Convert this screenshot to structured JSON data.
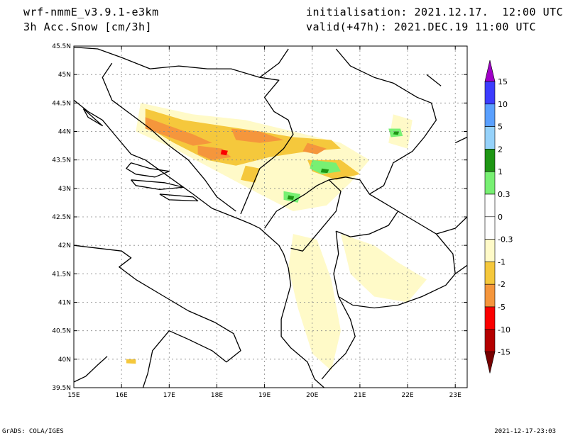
{
  "header": {
    "model": "wrf-nmmE_v3.9.1-e3km",
    "field": "3h Acc.Snow [cm/3h]",
    "init": "initialisation: 2021.12.17.  12:00 UTC",
    "valid": "valid(+47h): 2021.DEC.19 11:00 UTC"
  },
  "footer": {
    "software": "GrADS: COLA/IGES",
    "timestamp": "2021-12-17-23:03"
  },
  "axes": {
    "lon_min": 15,
    "lon_max": 23.25,
    "lat_min": 39.5,
    "lat_max": 45.5,
    "x_ticks": [
      {
        "v": 15,
        "label": "15E"
      },
      {
        "v": 16,
        "label": "16E"
      },
      {
        "v": 17,
        "label": "17E"
      },
      {
        "v": 18,
        "label": "18E"
      },
      {
        "v": 19,
        "label": "19E"
      },
      {
        "v": 20,
        "label": "20E"
      },
      {
        "v": 21,
        "label": "21E"
      },
      {
        "v": 22,
        "label": "22E"
      },
      {
        "v": 23,
        "label": "23E"
      }
    ],
    "y_ticks": [
      {
        "v": 39.5,
        "label": "39.5N"
      },
      {
        "v": 40,
        "label": "40N"
      },
      {
        "v": 40.5,
        "label": "40.5N"
      },
      {
        "v": 41,
        "label": "41N"
      },
      {
        "v": 41.5,
        "label": "41.5N"
      },
      {
        "v": 42,
        "label": "42N"
      },
      {
        "v": 42.5,
        "label": "42.5N"
      },
      {
        "v": 43,
        "label": "43N"
      },
      {
        "v": 43.5,
        "label": "43.5N"
      },
      {
        "v": 44,
        "label": "44N"
      },
      {
        "v": 44.5,
        "label": "44.5N"
      },
      {
        "v": 45,
        "label": "45N"
      },
      {
        "v": 45.5,
        "label": "45.5N"
      }
    ]
  },
  "colorbar": {
    "bins": [
      {
        "color": "#a000c8"
      },
      {
        "color": "#3c3cff"
      },
      {
        "color": "#5aa0ff"
      },
      {
        "color": "#96d2fa"
      },
      {
        "color": "#1e9614"
      },
      {
        "color": "#78f073"
      },
      {
        "color": "#ffffff"
      },
      {
        "color": "#ffffff"
      },
      {
        "color": "#fffac8"
      },
      {
        "color": "#f5c83c"
      },
      {
        "color": "#f5963c"
      },
      {
        "color": "#fa0000"
      },
      {
        "color": "#b40000"
      },
      {
        "color": "#780000"
      }
    ],
    "labels": [
      "15",
      "10",
      "5",
      "2",
      "1",
      "0.3",
      "0",
      "-0.3",
      "-1",
      "-2",
      "-5",
      "-10",
      "-15"
    ]
  },
  "snow_areas": [
    {
      "color": "#fffac8",
      "pts": [
        [
          16.4,
          44.5
        ],
        [
          17.5,
          44.3
        ],
        [
          18.6,
          44.2
        ],
        [
          19.6,
          44.0
        ],
        [
          20.6,
          43.8
        ],
        [
          21.2,
          43.5
        ],
        [
          20.8,
          43.1
        ],
        [
          20.3,
          42.7
        ],
        [
          19.6,
          42.6
        ],
        [
          18.9,
          42.9
        ],
        [
          18.0,
          43.3
        ],
        [
          17.1,
          43.7
        ],
        [
          16.3,
          44.0
        ]
      ]
    },
    {
      "color": "#fffac8",
      "pts": [
        [
          19.6,
          42.2
        ],
        [
          20.1,
          42.1
        ],
        [
          20.4,
          41.4
        ],
        [
          20.6,
          40.5
        ],
        [
          20.4,
          39.8
        ],
        [
          20.0,
          40.1
        ],
        [
          19.7,
          40.9
        ],
        [
          19.5,
          41.6
        ]
      ]
    },
    {
      "color": "#fffac8",
      "pts": [
        [
          20.6,
          42.2
        ],
        [
          21.3,
          42.0
        ],
        [
          21.8,
          41.7
        ],
        [
          22.4,
          41.4
        ],
        [
          22.0,
          41.0
        ],
        [
          21.3,
          41.1
        ],
        [
          20.8,
          41.5
        ]
      ]
    },
    {
      "color": "#fffac8",
      "pts": [
        [
          21.7,
          44.3
        ],
        [
          22.1,
          44.2
        ],
        [
          22.0,
          43.7
        ],
        [
          21.6,
          43.8
        ]
      ]
    },
    {
      "color": "#f5c83c",
      "pts": [
        [
          16.5,
          44.4
        ],
        [
          17.3,
          44.2
        ],
        [
          18.1,
          44.1
        ],
        [
          18.9,
          44.0
        ],
        [
          19.6,
          43.9
        ],
        [
          20.4,
          43.85
        ],
        [
          20.6,
          43.7
        ],
        [
          19.9,
          43.65
        ],
        [
          19.1,
          43.55
        ],
        [
          18.4,
          43.4
        ],
        [
          17.8,
          43.5
        ],
        [
          17.1,
          43.8
        ],
        [
          16.5,
          44.1
        ]
      ]
    },
    {
      "color": "#f5c83c",
      "pts": [
        [
          19.9,
          43.5
        ],
        [
          20.6,
          43.5
        ],
        [
          21.0,
          43.25
        ],
        [
          20.5,
          43.15
        ],
        [
          20.0,
          43.3
        ]
      ]
    },
    {
      "color": "#f5c83c",
      "pts": [
        [
          18.6,
          43.4
        ],
        [
          18.9,
          43.35
        ],
        [
          18.8,
          43.1
        ],
        [
          18.5,
          43.15
        ]
      ]
    },
    {
      "color": "#f5c83c",
      "pts": [
        [
          16.1,
          40.0
        ],
        [
          16.3,
          40.0
        ],
        [
          16.3,
          39.92
        ],
        [
          16.1,
          39.93
        ]
      ]
    },
    {
      "color": "#f5963c",
      "pts": [
        [
          16.5,
          44.25
        ],
        [
          17.0,
          44.1
        ],
        [
          17.5,
          43.95
        ],
        [
          17.9,
          43.8
        ],
        [
          17.5,
          43.75
        ],
        [
          17.0,
          43.9
        ],
        [
          16.5,
          44.05
        ]
      ]
    },
    {
      "color": "#f5963c",
      "pts": [
        [
          18.3,
          44.05
        ],
        [
          18.9,
          44.0
        ],
        [
          19.4,
          43.85
        ],
        [
          18.9,
          43.8
        ],
        [
          18.4,
          43.85
        ]
      ]
    },
    {
      "color": "#f5963c",
      "pts": [
        [
          17.6,
          43.75
        ],
        [
          18.1,
          43.7
        ],
        [
          18.3,
          43.55
        ],
        [
          17.9,
          43.5
        ],
        [
          17.6,
          43.6
        ]
      ]
    },
    {
      "color": "#f5963c",
      "pts": [
        [
          19.9,
          43.8
        ],
        [
          20.3,
          43.7
        ],
        [
          20.1,
          43.6
        ],
        [
          19.8,
          43.65
        ]
      ]
    },
    {
      "color": "#fa0000",
      "pts": [
        [
          18.1,
          43.68
        ],
        [
          18.23,
          43.66
        ],
        [
          18.2,
          43.58
        ],
        [
          18.08,
          43.6
        ]
      ]
    },
    {
      "color": "#78f073",
      "pts": [
        [
          20.0,
          43.5
        ],
        [
          20.5,
          43.45
        ],
        [
          20.6,
          43.3
        ],
        [
          20.2,
          43.25
        ],
        [
          19.95,
          43.35
        ]
      ]
    },
    {
      "color": "#78f073",
      "pts": [
        [
          19.4,
          42.95
        ],
        [
          19.75,
          42.9
        ],
        [
          19.7,
          42.75
        ],
        [
          19.4,
          42.8
        ]
      ]
    },
    {
      "color": "#78f073",
      "pts": [
        [
          21.6,
          44.05
        ],
        [
          21.85,
          44.05
        ],
        [
          21.9,
          43.92
        ],
        [
          21.65,
          43.9
        ]
      ]
    },
    {
      "color": "#1e9614",
      "pts": [
        [
          20.2,
          43.35
        ],
        [
          20.35,
          43.33
        ],
        [
          20.32,
          43.27
        ],
        [
          20.18,
          43.28
        ]
      ]
    },
    {
      "color": "#1e9614",
      "pts": [
        [
          19.5,
          42.88
        ],
        [
          19.62,
          42.86
        ],
        [
          19.6,
          42.8
        ],
        [
          19.48,
          42.81
        ]
      ]
    },
    {
      "color": "#1e9614",
      "pts": [
        [
          21.72,
          44.0
        ],
        [
          21.82,
          44.0
        ],
        [
          21.8,
          43.94
        ],
        [
          21.7,
          43.95
        ]
      ]
    }
  ],
  "coast_lines": [
    [
      [
        15.0,
        44.55
      ],
      [
        15.3,
        44.35
      ],
      [
        15.6,
        44.2
      ],
      [
        15.9,
        43.9
      ],
      [
        16.2,
        43.6
      ],
      [
        16.5,
        43.5
      ],
      [
        17.0,
        43.2
      ],
      [
        17.5,
        42.9
      ],
      [
        17.9,
        42.65
      ],
      [
        18.2,
        42.55
      ],
      [
        18.5,
        42.45
      ],
      [
        18.7,
        42.38
      ],
      [
        18.9,
        42.3
      ],
      [
        19.1,
        42.15
      ],
      [
        19.3,
        42.0
      ],
      [
        19.4,
        41.85
      ],
      [
        19.5,
        41.6
      ],
      [
        19.55,
        41.3
      ],
      [
        19.45,
        41.0
      ],
      [
        19.35,
        40.7
      ],
      [
        19.35,
        40.4
      ],
      [
        19.55,
        40.2
      ],
      [
        19.9,
        39.95
      ],
      [
        20.05,
        39.65
      ],
      [
        20.25,
        39.5
      ]
    ],
    [
      [
        15.0,
        42.0
      ],
      [
        15.5,
        41.95
      ],
      [
        16.0,
        41.9
      ],
      [
        16.2,
        41.78
      ],
      [
        15.95,
        41.62
      ],
      [
        16.3,
        41.4
      ],
      [
        16.9,
        41.1
      ],
      [
        17.4,
        40.85
      ],
      [
        17.95,
        40.65
      ],
      [
        18.35,
        40.45
      ],
      [
        18.5,
        40.15
      ],
      [
        18.2,
        39.95
      ],
      [
        17.9,
        40.15
      ],
      [
        17.4,
        40.35
      ],
      [
        17.0,
        40.5
      ],
      [
        16.65,
        40.15
      ],
      [
        16.55,
        39.75
      ],
      [
        16.45,
        39.5
      ]
    ],
    [
      [
        15.7,
        40.05
      ],
      [
        15.5,
        39.9
      ],
      [
        15.25,
        39.7
      ],
      [
        15.0,
        39.6
      ]
    ],
    [
      [
        16.2,
        43.45
      ],
      [
        16.6,
        43.35
      ],
      [
        17.0,
        43.3
      ],
      [
        16.7,
        43.2
      ],
      [
        16.3,
        43.25
      ],
      [
        16.1,
        43.35
      ],
      [
        16.2,
        43.45
      ]
    ],
    [
      [
        16.2,
        43.15
      ],
      [
        16.9,
        43.1
      ],
      [
        17.3,
        43.02
      ],
      [
        16.8,
        42.98
      ],
      [
        16.3,
        43.05
      ],
      [
        16.2,
        43.15
      ]
    ],
    [
      [
        16.8,
        42.9
      ],
      [
        17.5,
        42.85
      ],
      [
        17.6,
        42.78
      ],
      [
        17.0,
        42.8
      ],
      [
        16.8,
        42.9
      ]
    ],
    [
      [
        15.2,
        44.4
      ],
      [
        15.6,
        44.1
      ],
      [
        15.3,
        44.25
      ],
      [
        15.2,
        44.4
      ]
    ]
  ],
  "border_lines": [
    [
      [
        15.0,
        45.48
      ],
      [
        15.5,
        45.45
      ],
      [
        16.0,
        45.3
      ],
      [
        16.6,
        45.1
      ],
      [
        17.2,
        45.15
      ],
      [
        17.8,
        45.1
      ],
      [
        18.3,
        45.1
      ],
      [
        18.9,
        44.95
      ],
      [
        19.3,
        44.9
      ],
      [
        19.0,
        44.6
      ],
      [
        19.2,
        44.35
      ],
      [
        19.5,
        44.2
      ],
      [
        19.6,
        43.95
      ],
      [
        19.4,
        43.7
      ],
      [
        19.2,
        43.55
      ],
      [
        18.9,
        43.35
      ],
      [
        18.7,
        42.95
      ],
      [
        18.5,
        42.55
      ]
    ],
    [
      [
        15.8,
        45.2
      ],
      [
        15.6,
        44.95
      ],
      [
        15.8,
        44.55
      ],
      [
        16.2,
        44.3
      ],
      [
        16.6,
        44.05
      ],
      [
        17.0,
        43.75
      ],
      [
        17.4,
        43.5
      ],
      [
        17.75,
        43.15
      ],
      [
        18.0,
        42.85
      ],
      [
        18.4,
        42.6
      ]
    ],
    [
      [
        19.0,
        42.3
      ],
      [
        19.25,
        42.6
      ],
      [
        19.55,
        42.75
      ],
      [
        19.85,
        42.9
      ],
      [
        20.1,
        43.05
      ],
      [
        20.35,
        43.15
      ],
      [
        20.6,
        42.95
      ],
      [
        20.5,
        42.6
      ],
      [
        20.2,
        42.3
      ],
      [
        20.0,
        42.1
      ],
      [
        19.8,
        41.9
      ],
      [
        19.55,
        41.95
      ]
    ],
    [
      [
        20.35,
        43.15
      ],
      [
        20.7,
        43.2
      ],
      [
        21.0,
        43.15
      ],
      [
        21.2,
        42.9
      ],
      [
        21.5,
        42.75
      ],
      [
        21.8,
        42.6
      ],
      [
        21.6,
        42.35
      ],
      [
        21.2,
        42.2
      ],
      [
        20.8,
        42.15
      ],
      [
        20.5,
        42.25
      ]
    ],
    [
      [
        20.5,
        42.25
      ],
      [
        20.55,
        41.85
      ],
      [
        20.45,
        41.5
      ],
      [
        20.55,
        41.1
      ],
      [
        20.85,
        40.95
      ],
      [
        21.3,
        40.9
      ],
      [
        21.8,
        40.95
      ],
      [
        22.3,
        41.1
      ],
      [
        22.8,
        41.3
      ],
      [
        23.0,
        41.5
      ],
      [
        22.95,
        41.85
      ],
      [
        22.6,
        42.2
      ],
      [
        22.3,
        42.35
      ],
      [
        21.8,
        42.6
      ]
    ],
    [
      [
        20.55,
        41.1
      ],
      [
        20.8,
        40.7
      ],
      [
        20.9,
        40.4
      ],
      [
        20.7,
        40.1
      ],
      [
        20.4,
        39.85
      ],
      [
        20.2,
        39.65
      ]
    ],
    [
      [
        21.2,
        42.9
      ],
      [
        21.5,
        43.05
      ],
      [
        21.7,
        43.45
      ],
      [
        22.1,
        43.65
      ],
      [
        22.35,
        43.9
      ],
      [
        22.6,
        44.2
      ],
      [
        22.5,
        44.5
      ],
      [
        22.2,
        44.6
      ],
      [
        21.7,
        44.85
      ],
      [
        21.3,
        44.95
      ],
      [
        20.8,
        45.15
      ],
      [
        20.5,
        45.45
      ]
    ],
    [
      [
        18.9,
        44.95
      ],
      [
        19.3,
        45.2
      ],
      [
        19.5,
        45.45
      ]
    ],
    [
      [
        22.4,
        45.0
      ],
      [
        22.7,
        44.8
      ]
    ],
    [
      [
        23.0,
        41.5
      ],
      [
        23.25,
        41.65
      ]
    ],
    [
      [
        22.6,
        42.2
      ],
      [
        23.0,
        42.3
      ],
      [
        23.25,
        42.5
      ]
    ],
    [
      [
        23.0,
        43.8
      ],
      [
        23.25,
        43.9
      ]
    ]
  ]
}
